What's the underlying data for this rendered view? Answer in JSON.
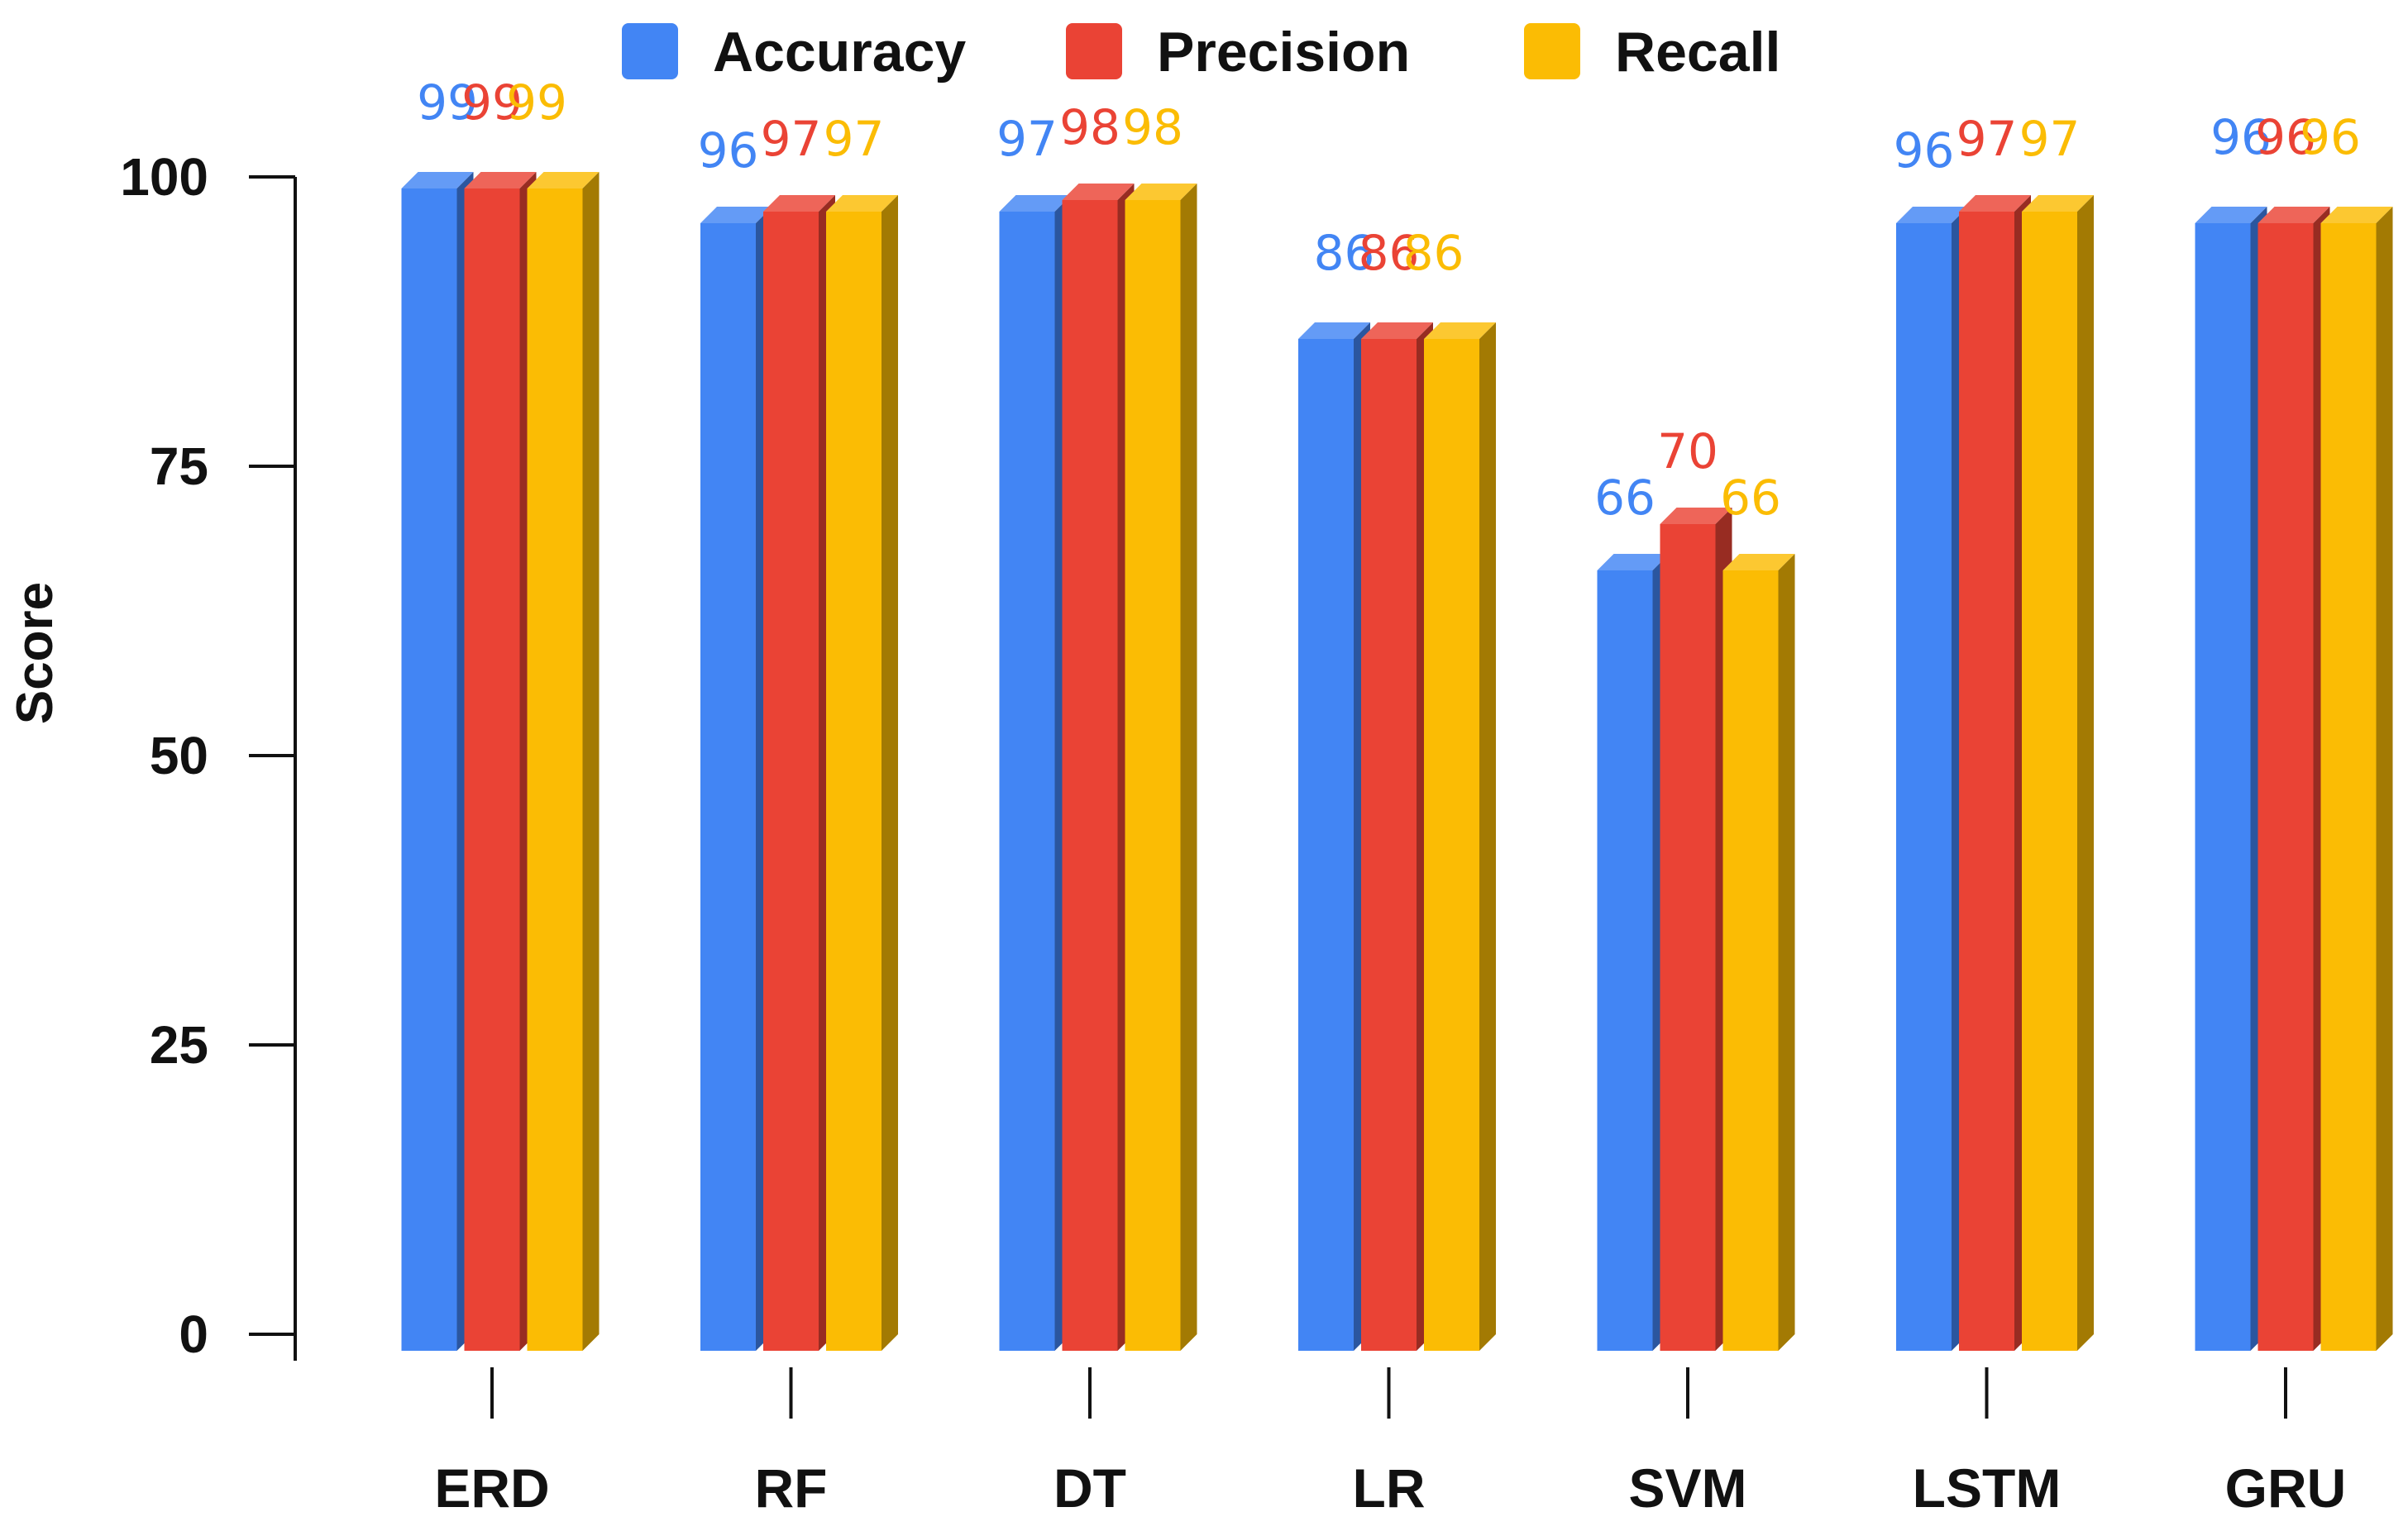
{
  "chart_data": {
    "type": "bar",
    "title": "",
    "xlabel": "",
    "ylabel": "Score",
    "ylim": [
      0,
      100
    ],
    "yticks": [
      0,
      25,
      50,
      75,
      100
    ],
    "legend_position": "top",
    "categories": [
      "ERD",
      "RF",
      "DT",
      "LR",
      "SVM",
      "LSTM",
      "GRU"
    ],
    "series": [
      {
        "name": "Accuracy",
        "color": "#4285F4",
        "values": [
          99,
          96,
          97,
          86,
          66,
          96,
          96
        ]
      },
      {
        "name": "Precision",
        "color": "#EA4335",
        "values": [
          99,
          97,
          98,
          86,
          70,
          97,
          96
        ]
      },
      {
        "name": "Recall",
        "color": "#FBBC04",
        "values": [
          99,
          97,
          98,
          86,
          66,
          97,
          96
        ]
      }
    ]
  }
}
